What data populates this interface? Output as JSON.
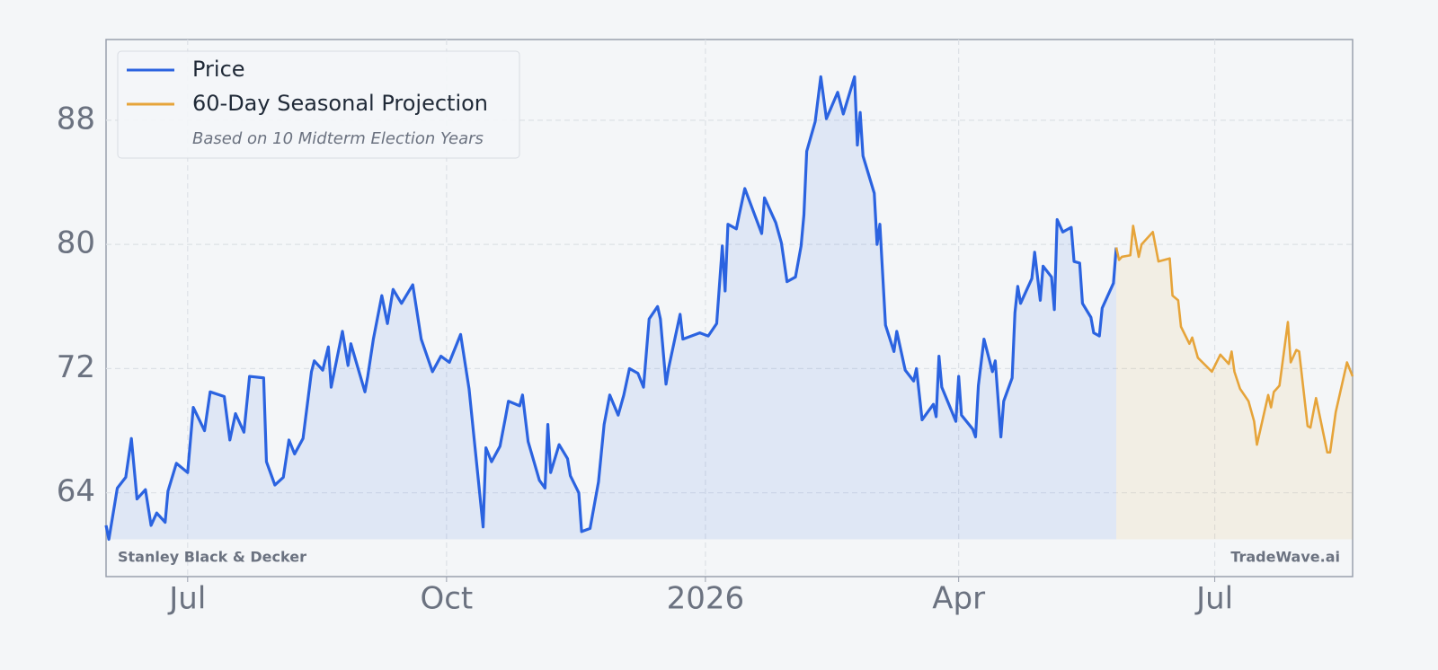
{
  "chart_data": {
    "type": "line",
    "series": [
      {
        "name": "Price",
        "color": "#2b63e0",
        "x": [
          "2025-06-02",
          "2025-06-03",
          "2025-06-06",
          "2025-06-09",
          "2025-06-11",
          "2025-06-13",
          "2025-06-16",
          "2025-06-18",
          "2025-06-20",
          "2025-06-23",
          "2025-06-24",
          "2025-06-27",
          "2025-07-01",
          "2025-07-03",
          "2025-07-07",
          "2025-07-09",
          "2025-07-14",
          "2025-07-16",
          "2025-07-18",
          "2025-07-21",
          "2025-07-23",
          "2025-07-28",
          "2025-07-29",
          "2025-08-01",
          "2025-08-04",
          "2025-08-06",
          "2025-08-08",
          "2025-08-11",
          "2025-08-14",
          "2025-08-15",
          "2025-08-18",
          "2025-08-20",
          "2025-08-21",
          "2025-08-25",
          "2025-08-27",
          "2025-08-28",
          "2025-09-02",
          "2025-09-03",
          "2025-09-05",
          "2025-09-08",
          "2025-09-10",
          "2025-09-12",
          "2025-09-15",
          "2025-09-19",
          "2025-09-22",
          "2025-09-26",
          "2025-09-29",
          "2025-10-02",
          "2025-10-06",
          "2025-10-09",
          "2025-10-14",
          "2025-10-15",
          "2025-10-17",
          "2025-10-20",
          "2025-10-22",
          "2025-10-23",
          "2025-10-27",
          "2025-10-28",
          "2025-10-30",
          "2025-11-03",
          "2025-11-05",
          "2025-11-06",
          "2025-11-07",
          "2025-11-10",
          "2025-11-13",
          "2025-11-14",
          "2025-11-17",
          "2025-11-18",
          "2025-11-21",
          "2025-11-24",
          "2025-11-26",
          "2025-11-28",
          "2025-12-01",
          "2025-12-03",
          "2025-12-05",
          "2025-12-08",
          "2025-12-10",
          "2025-12-12",
          "2025-12-15",
          "2025-12-16",
          "2025-12-18",
          "2025-12-19",
          "2025-12-23",
          "2025-12-24",
          "2025-12-30",
          "2026-01-02",
          "2026-01-05",
          "2026-01-07",
          "2026-01-08",
          "2026-01-09",
          "2026-01-12",
          "2026-01-13",
          "2026-01-15",
          "2026-01-21",
          "2026-01-22",
          "2026-01-26",
          "2026-01-28",
          "2026-01-30",
          "2026-02-02",
          "2026-02-04",
          "2026-02-05",
          "2026-02-06",
          "2026-02-09",
          "2026-02-11",
          "2026-02-13",
          "2026-02-17",
          "2026-02-19",
          "2026-02-23",
          "2026-02-24",
          "2026-02-25",
          "2026-02-26",
          "2026-03-02",
          "2026-03-03",
          "2026-03-04",
          "2026-03-06",
          "2026-03-09",
          "2026-03-10",
          "2026-03-13",
          "2026-03-16",
          "2026-03-17",
          "2026-03-19",
          "2026-03-23",
          "2026-03-24",
          "2026-03-25",
          "2026-03-26",
          "2026-03-31",
          "2026-04-01",
          "2026-04-02",
          "2026-04-06",
          "2026-04-07",
          "2026-04-08",
          "2026-04-10",
          "2026-04-13",
          "2026-04-14",
          "2026-04-16",
          "2026-04-17",
          "2026-04-20",
          "2026-04-21",
          "2026-04-22",
          "2026-04-23",
          "2026-04-27",
          "2026-04-28",
          "2026-04-30",
          "2026-05-01",
          "2026-05-04",
          "2026-05-05",
          "2026-05-06",
          "2026-05-08",
          "2026-05-11",
          "2026-05-12",
          "2026-05-14",
          "2026-05-15",
          "2026-05-18",
          "2026-05-19",
          "2026-05-21",
          "2026-05-22",
          "2026-05-26",
          "2026-05-27"
        ],
        "values": [
          61.9,
          61.0,
          64.3,
          65.0,
          67.5,
          63.6,
          64.2,
          61.9,
          62.7,
          62.1,
          64.1,
          65.9,
          65.3,
          69.5,
          68.0,
          70.5,
          70.2,
          67.4,
          69.1,
          67.9,
          71.5,
          71.4,
          66.0,
          64.5,
          65.0,
          67.4,
          66.5,
          67.5,
          71.8,
          72.5,
          71.9,
          73.4,
          70.8,
          74.4,
          72.2,
          73.6,
          70.5,
          71.5,
          73.9,
          76.7,
          74.9,
          77.1,
          76.2,
          77.4,
          73.9,
          71.8,
          72.8,
          72.4,
          74.2,
          70.7,
          61.8,
          66.9,
          66.0,
          67.0,
          68.9,
          69.9,
          69.6,
          70.3,
          67.3,
          64.8,
          64.3,
          68.4,
          65.3,
          67.1,
          66.2,
          65.1,
          64.0,
          61.5,
          61.7,
          64.7,
          68.4,
          70.3,
          69.0,
          70.3,
          72.0,
          71.7,
          70.8,
          75.2,
          76.0,
          75.2,
          71.0,
          72.1,
          75.5,
          73.9,
          74.3,
          74.1,
          74.9,
          79.9,
          77.0,
          81.3,
          81.0,
          81.9,
          83.6,
          80.7,
          83.0,
          81.4,
          80.1,
          77.6,
          77.9,
          79.9,
          81.9,
          86.0,
          87.9,
          90.8,
          88.1,
          89.8,
          88.4,
          90.8,
          86.4,
          88.5,
          85.7,
          83.3,
          80.0,
          81.3,
          74.8,
          73.1,
          74.4,
          71.9,
          71.2,
          72.0,
          68.7,
          69.7,
          68.9,
          72.8,
          70.8,
          68.6,
          71.5,
          69.0,
          68.1,
          67.6,
          70.9,
          73.9,
          71.8,
          72.5,
          67.6,
          69.9,
          71.4,
          75.6,
          77.3,
          76.2,
          77.8,
          79.5,
          76.4,
          78.6,
          77.9,
          75.8,
          81.6,
          80.8,
          81.1,
          78.9,
          78.8,
          76.2,
          75.3,
          74.3,
          74.1,
          75.9,
          77.5,
          79.8
        ]
      },
      {
        "name": "60-Day Seasonal Projection",
        "color": "#e6a43a",
        "x": [
          "2026-05-27",
          "2026-05-28",
          "2026-05-29",
          "2026-06-01",
          "2026-06-02",
          "2026-06-04",
          "2026-06-05",
          "2026-06-09",
          "2026-06-11",
          "2026-06-15",
          "2026-06-16",
          "2026-06-18",
          "2026-06-19",
          "2026-06-22",
          "2026-06-23",
          "2026-06-25",
          "2026-06-30",
          "2026-07-03",
          "2026-07-06",
          "2026-07-07",
          "2026-07-08",
          "2026-07-10",
          "2026-07-13",
          "2026-07-15",
          "2026-07-16",
          "2026-07-20",
          "2026-07-21",
          "2026-07-22",
          "2026-07-24",
          "2026-07-27",
          "2026-07-28",
          "2026-07-30",
          "2026-07-31",
          "2026-08-03",
          "2026-08-04",
          "2026-08-06",
          "2026-08-10",
          "2026-08-11",
          "2026-08-13",
          "2026-08-17",
          "2026-08-19"
        ],
        "values": [
          79.8,
          79.0,
          79.2,
          79.3,
          81.2,
          79.2,
          80.0,
          80.8,
          78.9,
          79.1,
          76.7,
          76.4,
          74.7,
          73.6,
          74.0,
          72.7,
          71.8,
          72.9,
          72.3,
          73.1,
          71.8,
          70.7,
          69.9,
          68.6,
          67.1,
          70.3,
          69.5,
          70.5,
          70.9,
          75.0,
          72.4,
          73.2,
          73.1,
          68.3,
          68.2,
          70.1,
          66.6,
          66.6,
          69.2,
          72.4,
          71.5
        ]
      }
    ],
    "legend": "upper left",
    "legend_note": "Based on 10 Midterm Election Years",
    "source_label": "Stanley Black & Decker",
    "watermark": "TradeWave.ai",
    "grid": true,
    "xlim": [
      "2025-06-02",
      "2026-08-19"
    ],
    "xticks": [
      {
        "value": "2025-07-01",
        "label": "Jul"
      },
      {
        "value": "2025-10-01",
        "label": "Oct"
      },
      {
        "value": "2026-01-01",
        "label": "2026"
      },
      {
        "value": "2026-04-01",
        "label": "Apr"
      },
      {
        "value": "2026-07-01",
        "label": "Jul"
      }
    ],
    "ylim": [
      58.6,
      93.2
    ],
    "yticks": [
      64,
      72,
      80,
      88
    ]
  }
}
